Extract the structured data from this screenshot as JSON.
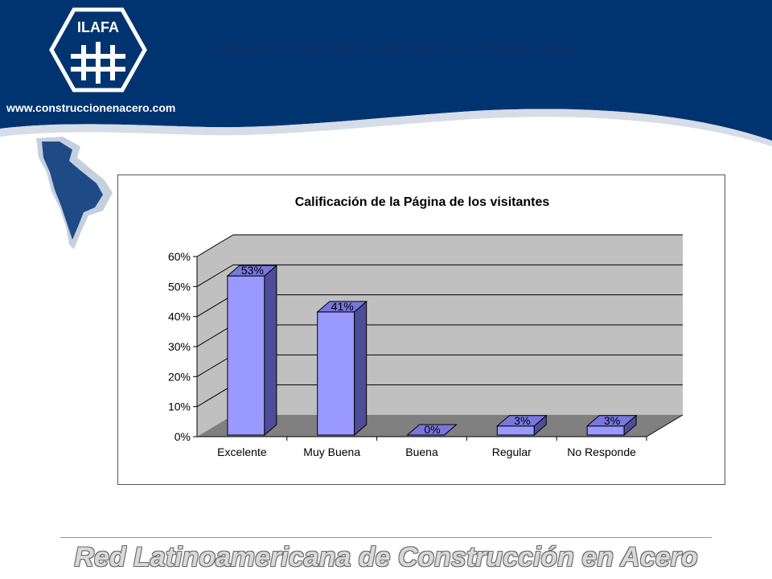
{
  "header": {
    "title": "ANÁLISIS A ENCUESTA DE VISITAS A PAGINA WEB",
    "website": "www.construccionenacero.com",
    "logo_text": "ILAFA"
  },
  "footer": {
    "text": "Red Latinoamericana de Construcción en Acero"
  },
  "colors": {
    "header_bg": "#003470",
    "bar_front": "#9999ff",
    "bar_side": "#4d4d99",
    "bar_top": "#7777dd",
    "plot_wall": "#c0c0c0",
    "plot_floor": "#808080"
  },
  "chart_data": {
    "type": "bar",
    "title": "Calificación de la Página de los visitantes",
    "categories": [
      "Excelente",
      "Muy Buena",
      "Buena",
      "Regular",
      "No Responde"
    ],
    "values": [
      53,
      41,
      0,
      3,
      3
    ],
    "value_labels": [
      "53%",
      "41%",
      "0%",
      "3%",
      "3%"
    ],
    "yticks": [
      "0%",
      "10%",
      "20%",
      "30%",
      "40%",
      "50%",
      "60%"
    ],
    "ylim": [
      0,
      60
    ],
    "grid": true,
    "legend": "none",
    "style": "3d"
  }
}
